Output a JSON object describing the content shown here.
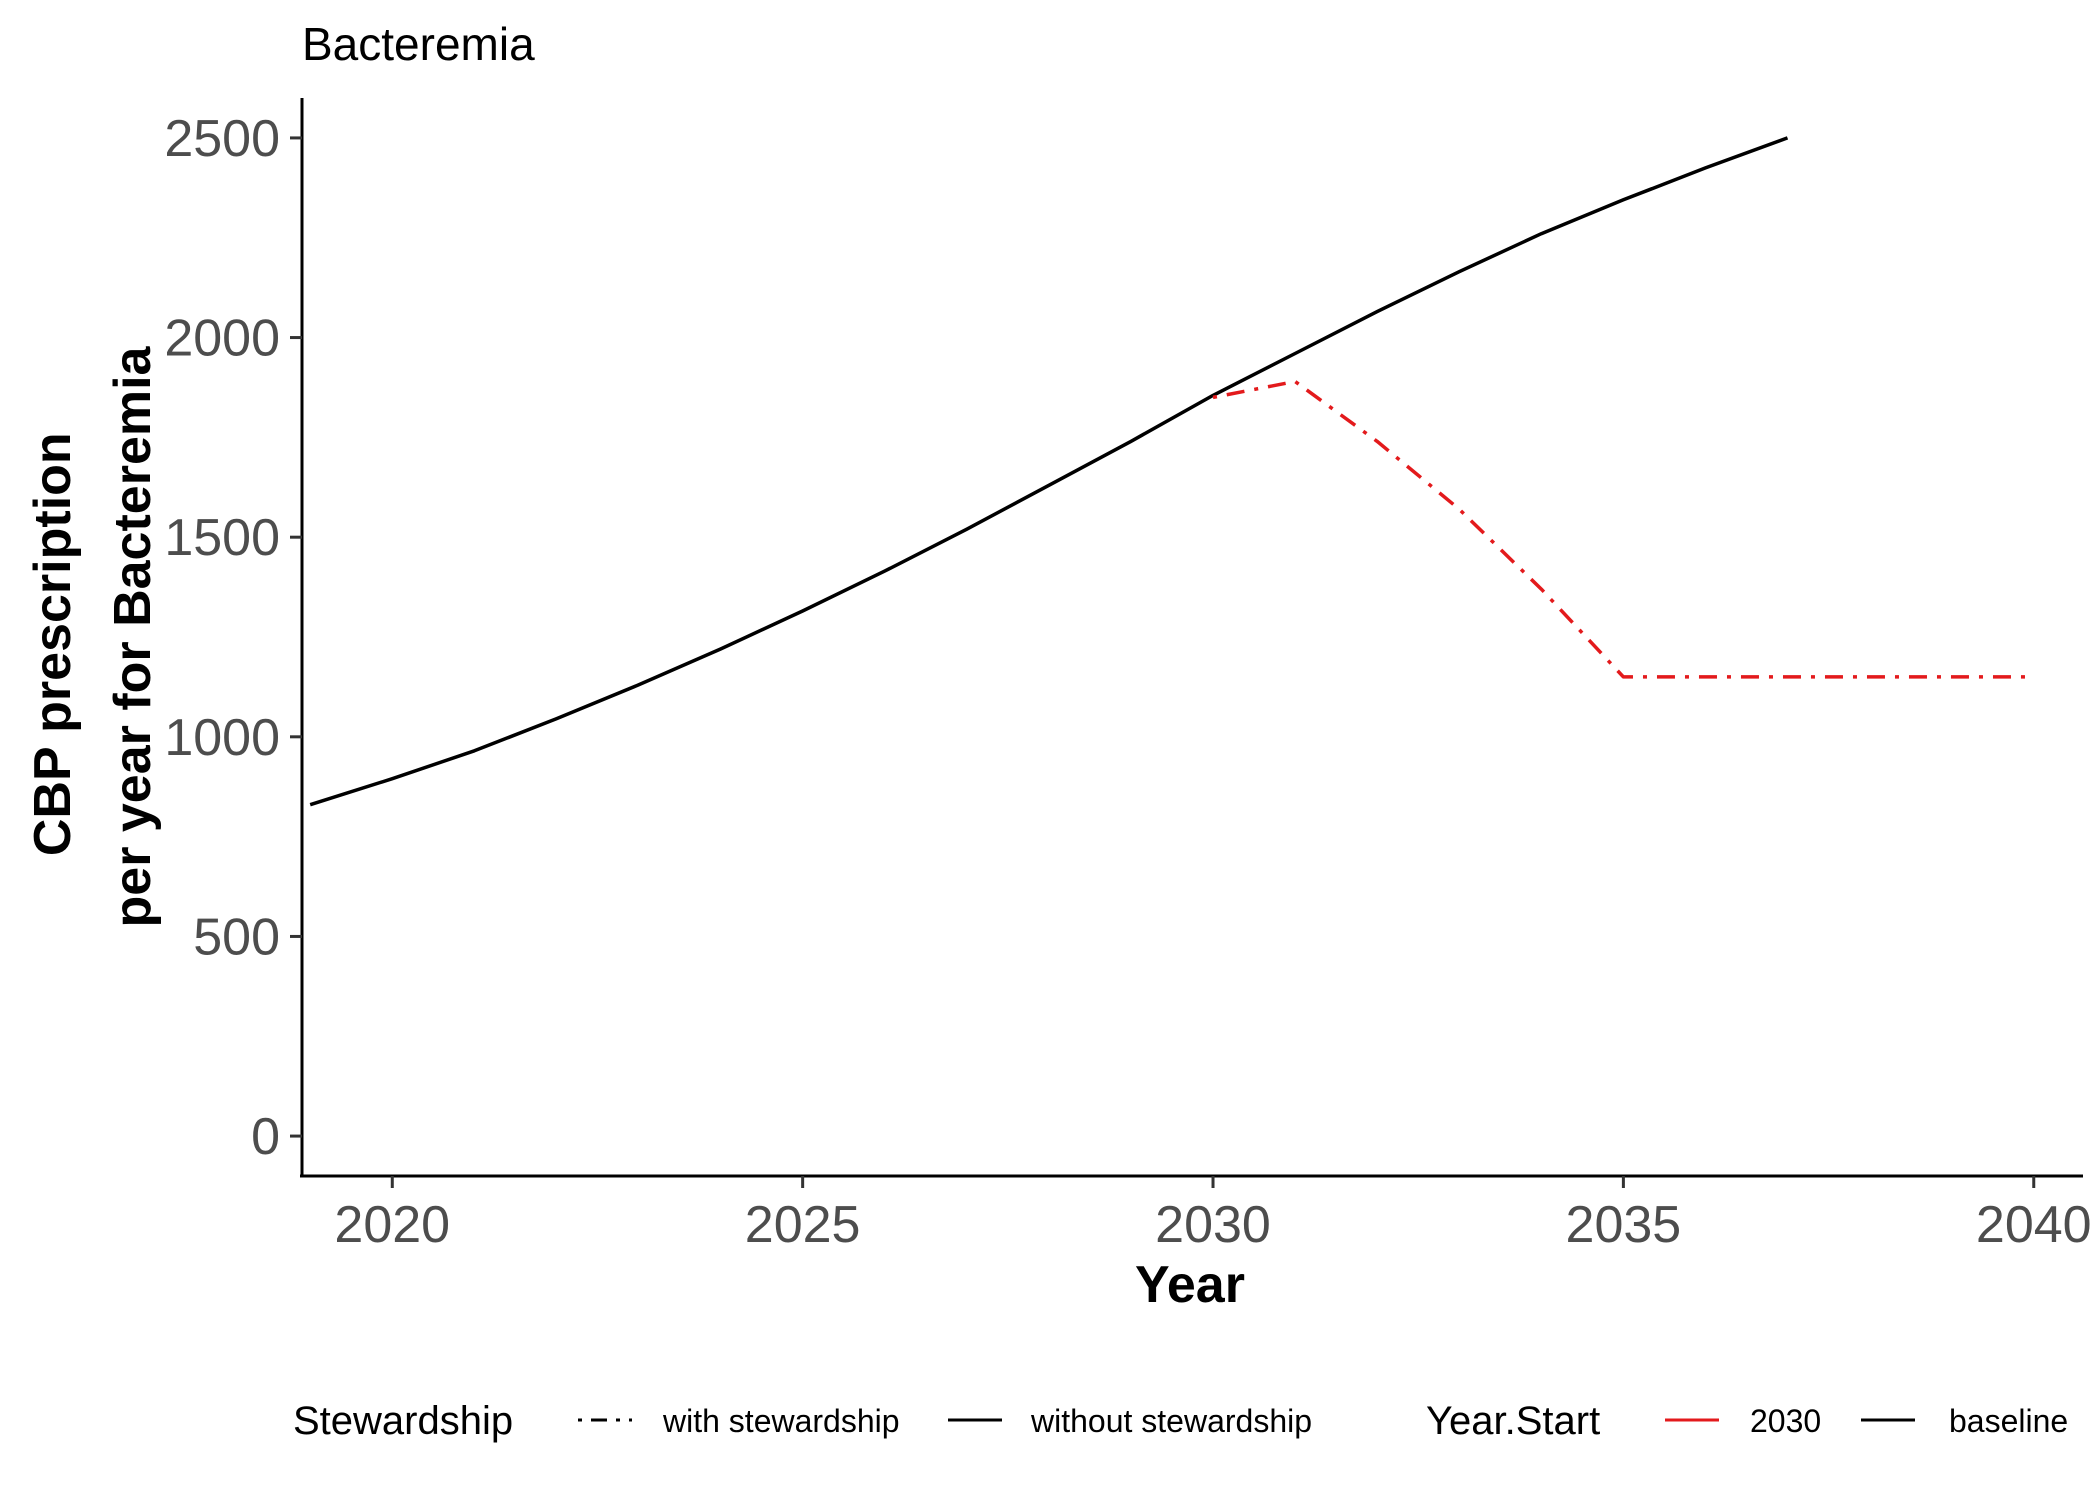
{
  "chart_data": {
    "type": "line",
    "title": "Bacteremia",
    "xlabel": "Year",
    "ylabel_lines": [
      "CBP prescription",
      "per year for Bacteremia"
    ],
    "xlim": [
      2018.9,
      2040.6
    ],
    "ylim": [
      -100,
      2600
    ],
    "x_ticks": [
      2020,
      2025,
      2030,
      2035,
      2040
    ],
    "y_ticks": [
      0,
      500,
      1000,
      1500,
      2000,
      2500
    ],
    "grid": false,
    "legend_position": "bottom",
    "series": [
      {
        "stewardship": "without stewardship",
        "year_start": "baseline",
        "color": "#000000",
        "linetype": "solid",
        "x": [
          2019,
          2020,
          2021,
          2022,
          2023,
          2024,
          2025,
          2026,
          2027,
          2028,
          2029,
          2030,
          2031,
          2032,
          2033,
          2034,
          2035,
          2036,
          2037
        ],
        "y": [
          830,
          895,
          965,
          1045,
          1130,
          1220,
          1315,
          1415,
          1520,
          1630,
          1740,
          1855,
          1960,
          2065,
          2165,
          2260,
          2345,
          2425,
          2500
        ]
      },
      {
        "stewardship": "with stewardship",
        "year_start": "2030",
        "color": "#e31a1c",
        "linetype": "dotdash",
        "x": [
          2030,
          2031,
          2032,
          2033,
          2034,
          2035,
          2036,
          2037,
          2038,
          2039,
          2040
        ],
        "y": [
          1850,
          1890,
          1740,
          1570,
          1370,
          1150,
          1150,
          1150,
          1150,
          1150,
          1150
        ]
      }
    ],
    "legend": {
      "stewardship": {
        "title": "Stewardship",
        "items": [
          {
            "label": "with stewardship",
            "linetype": "dotdash"
          },
          {
            "label": "without stewardship",
            "linetype": "solid"
          }
        ]
      },
      "year_start": {
        "title": "Year.Start",
        "items": [
          {
            "label": "2030",
            "color": "#e31a1c"
          },
          {
            "label": "baseline",
            "color": "#000000"
          }
        ]
      }
    }
  }
}
